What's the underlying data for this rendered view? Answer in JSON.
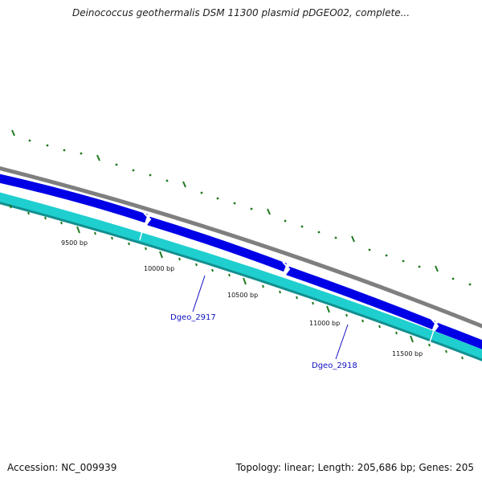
{
  "title": "Deinococcus geothermalis DSM 11300 plasmid pDGEO02, complete...",
  "footer": {
    "accession": "Accession: NC_009939",
    "summary": "Topology: linear; Length: 205,686 bp; Genes: 205"
  },
  "scale": {
    "labels": [
      "9500 bp",
      "10000 bp",
      "10500 bp",
      "11000 bp",
      "11500 bp"
    ]
  },
  "genes": [
    {
      "name": "Dgeo_2917"
    },
    {
      "name": "Dgeo_2918"
    }
  ],
  "colors": {
    "backbone": "#7f7f7f",
    "forward_strand": "#0000e6",
    "reverse_strand": "#1fcfcf",
    "tick": "#1f7a1f",
    "gene_label": "#1010c0"
  }
}
